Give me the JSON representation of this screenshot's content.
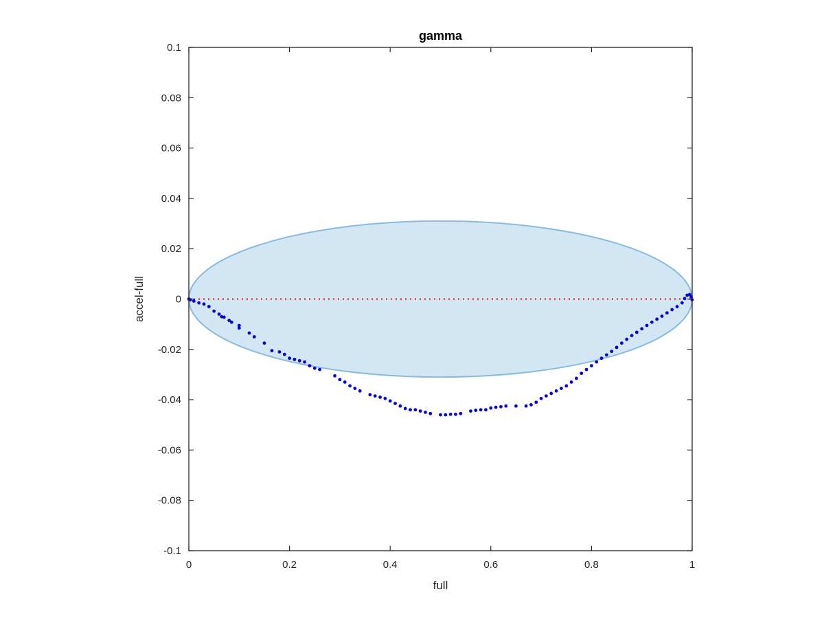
{
  "chart_data": {
    "type": "scatter",
    "title": "gamma",
    "xlabel": "full",
    "ylabel": "accel-full",
    "xlim": [
      0,
      1
    ],
    "ylim": [
      -0.1,
      0.1
    ],
    "xticks": [
      0,
      0.2,
      0.4,
      0.6,
      0.8,
      1
    ],
    "xtick_labels": [
      "0",
      "0.2",
      "0.4",
      "0.6",
      "0.8",
      "1"
    ],
    "yticks": [
      0.1,
      0.08,
      0.06,
      0.04,
      0.02,
      0,
      -0.02,
      -0.04,
      -0.06,
      -0.08,
      -0.1
    ],
    "ytick_labels": [
      "0.1",
      "0.08",
      "0.06",
      "0.04",
      "0.02",
      "0",
      "-0.02",
      "-0.04",
      "-0.06",
      "-0.08",
      "-0.1"
    ],
    "grid": false,
    "reference_line": {
      "y": 0,
      "color": "#ff0000",
      "style": "dotted"
    },
    "ellipse": {
      "cx": 0.5,
      "cy": 0,
      "rx": 0.5,
      "ry": 0.031,
      "fill": "#d3e6f3",
      "stroke": "#88bbdd"
    },
    "series": [
      {
        "color": "#0000e0",
        "points": [
          [
            0.0,
            0.0
          ],
          [
            0.003,
            -0.0003
          ],
          [
            0.01,
            -0.0008
          ],
          [
            0.02,
            -0.0015
          ],
          [
            0.03,
            -0.002
          ],
          [
            0.04,
            -0.003
          ],
          [
            0.05,
            -0.0048
          ],
          [
            0.06,
            -0.006
          ],
          [
            0.065,
            -0.007
          ],
          [
            0.07,
            -0.0072
          ],
          [
            0.08,
            -0.0085
          ],
          [
            0.085,
            -0.0092
          ],
          [
            0.1,
            -0.0105
          ],
          [
            0.1,
            -0.0115
          ],
          [
            0.12,
            -0.0135
          ],
          [
            0.13,
            -0.015
          ],
          [
            0.15,
            -0.0175
          ],
          [
            0.165,
            -0.0205
          ],
          [
            0.18,
            -0.021
          ],
          [
            0.19,
            -0.022
          ],
          [
            0.2,
            -0.0235
          ],
          [
            0.21,
            -0.024
          ],
          [
            0.22,
            -0.0245
          ],
          [
            0.23,
            -0.025
          ],
          [
            0.24,
            -0.0265
          ],
          [
            0.25,
            -0.0275
          ],
          [
            0.26,
            -0.028
          ],
          [
            0.29,
            -0.0305
          ],
          [
            0.3,
            -0.032
          ],
          [
            0.31,
            -0.033
          ],
          [
            0.32,
            -0.0345
          ],
          [
            0.33,
            -0.0355
          ],
          [
            0.34,
            -0.0365
          ],
          [
            0.36,
            -0.038
          ],
          [
            0.37,
            -0.0385
          ],
          [
            0.38,
            -0.039
          ],
          [
            0.39,
            -0.0395
          ],
          [
            0.4,
            -0.0405
          ],
          [
            0.41,
            -0.0415
          ],
          [
            0.42,
            -0.0425
          ],
          [
            0.43,
            -0.0435
          ],
          [
            0.44,
            -0.044
          ],
          [
            0.45,
            -0.044
          ],
          [
            0.46,
            -0.0445
          ],
          [
            0.47,
            -0.045
          ],
          [
            0.48,
            -0.0455
          ],
          [
            0.5,
            -0.046
          ],
          [
            0.51,
            -0.046
          ],
          [
            0.52,
            -0.0458
          ],
          [
            0.53,
            -0.0458
          ],
          [
            0.54,
            -0.0455
          ],
          [
            0.56,
            -0.0445
          ],
          [
            0.57,
            -0.0442
          ],
          [
            0.58,
            -0.044
          ],
          [
            0.59,
            -0.044
          ],
          [
            0.6,
            -0.0433
          ],
          [
            0.61,
            -0.043
          ],
          [
            0.62,
            -0.0428
          ],
          [
            0.63,
            -0.0425
          ],
          [
            0.65,
            -0.0425
          ],
          [
            0.67,
            -0.0425
          ],
          [
            0.68,
            -0.042
          ],
          [
            0.69,
            -0.041
          ],
          [
            0.7,
            -0.0395
          ],
          [
            0.71,
            -0.0385
          ],
          [
            0.72,
            -0.0375
          ],
          [
            0.73,
            -0.0365
          ],
          [
            0.74,
            -0.0355
          ],
          [
            0.75,
            -0.0345
          ],
          [
            0.76,
            -0.033
          ],
          [
            0.77,
            -0.0315
          ],
          [
            0.78,
            -0.0295
          ],
          [
            0.79,
            -0.028
          ],
          [
            0.8,
            -0.0265
          ],
          [
            0.81,
            -0.025
          ],
          [
            0.82,
            -0.0235
          ],
          [
            0.83,
            -0.0222
          ],
          [
            0.84,
            -0.0208
          ],
          [
            0.85,
            -0.0192
          ],
          [
            0.86,
            -0.0175
          ],
          [
            0.87,
            -0.016
          ],
          [
            0.88,
            -0.0145
          ],
          [
            0.89,
            -0.0132
          ],
          [
            0.9,
            -0.0118
          ],
          [
            0.91,
            -0.0105
          ],
          [
            0.92,
            -0.0092
          ],
          [
            0.93,
            -0.008
          ],
          [
            0.94,
            -0.0068
          ],
          [
            0.95,
            -0.0055
          ],
          [
            0.96,
            -0.0042
          ],
          [
            0.97,
            -0.003
          ],
          [
            0.98,
            -0.0015
          ],
          [
            0.985,
            0.0002
          ],
          [
            0.99,
            0.0015
          ],
          [
            0.995,
            0.0018
          ],
          [
            0.998,
            0.0008
          ],
          [
            1.0,
            -0.0003
          ]
        ]
      }
    ]
  }
}
